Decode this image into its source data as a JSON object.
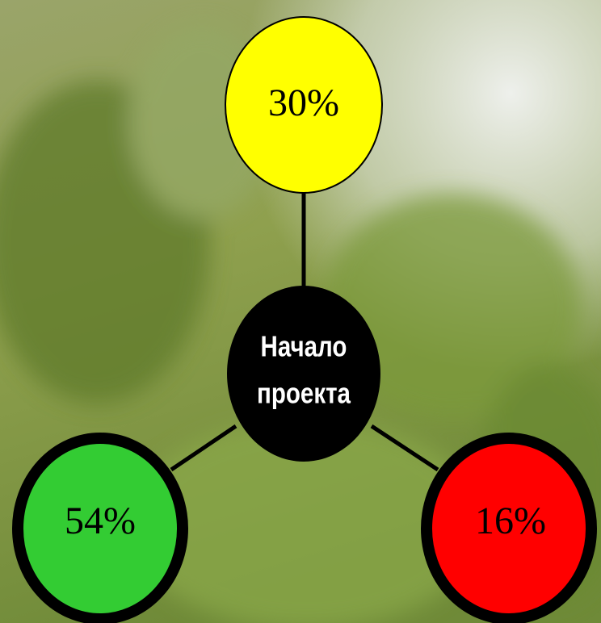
{
  "center": {
    "label_lines": [
      "Начало",
      "проекта"
    ]
  },
  "nodes": [
    {
      "label": "30%"
    },
    {
      "label": "54%"
    },
    {
      "label": "16%"
    }
  ]
}
